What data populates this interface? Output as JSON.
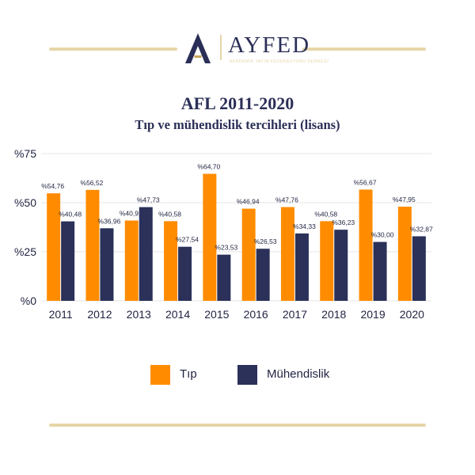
{
  "brand": {
    "name": "AYFED",
    "tagline": "AKADEMİK YAYIN FEDERASYONU DERNEĞİ"
  },
  "colors": {
    "tip": "#ff8c00",
    "muhendislik": "#2b3159",
    "brand_navy": "#2b2f57",
    "gold": "#e6d6a8",
    "grid": "#e4e4e4",
    "text": "#1f2340"
  },
  "icons": [
    "ayfed-logo-icon"
  ],
  "chart_data": {
    "type": "bar",
    "title": "AFL 2011-2020",
    "subtitle": "Tıp ve mühendislik tercihleri (lisans)",
    "categories": [
      "2011",
      "2012",
      "2013",
      "2014",
      "2015",
      "2016",
      "2017",
      "2018",
      "2019",
      "2020"
    ],
    "series": [
      {
        "name": "Tıp",
        "values": [
          54.76,
          56.52,
          40.91,
          40.58,
          64.7,
          46.94,
          47.76,
          40.58,
          56.67,
          47.95
        ],
        "labels": [
          "%54,76",
          "%56,52",
          "%40,91",
          "%40,58",
          "%64,70",
          "%46,94",
          "%47,76",
          "%40,58",
          "%56,67",
          "%47,95"
        ]
      },
      {
        "name": "Mühendislik",
        "values": [
          40.48,
          36.96,
          47.73,
          27.54,
          23.53,
          26.53,
          34.33,
          36.23,
          30.0,
          32.87
        ],
        "labels": [
          "%40,48",
          "%36,96",
          "%47,73",
          "%27,54",
          "%23,53",
          "%26,53",
          "%34,33",
          "%36,23",
          "%30,00",
          "%32,87"
        ]
      }
    ],
    "ylim": [
      0,
      75
    ],
    "yticks": [
      0,
      25,
      50,
      75
    ],
    "ytick_labels": [
      "%0",
      "%25",
      "%50",
      "%75"
    ],
    "grid": true,
    "legend": "bottom"
  }
}
